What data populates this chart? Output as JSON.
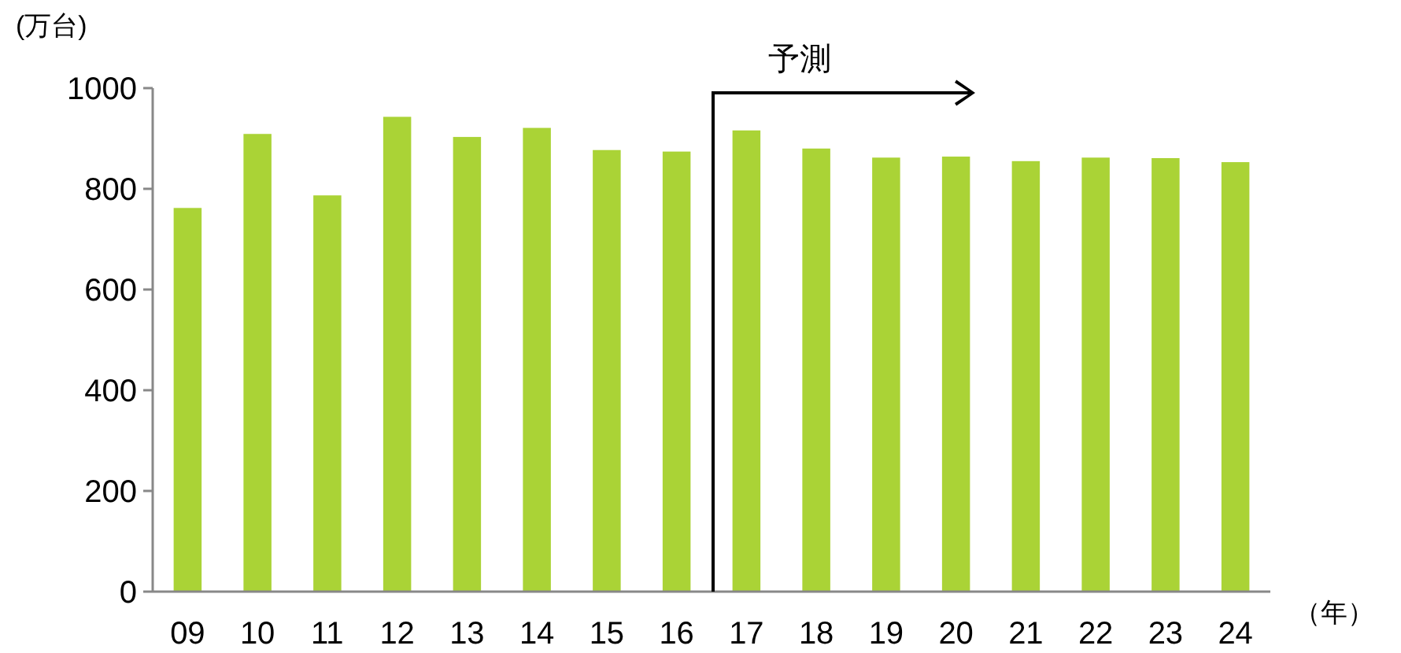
{
  "chart_data": {
    "type": "bar",
    "ylabel": "(万台)",
    "xlabel": "（年）",
    "categories": [
      "09",
      "10",
      "11",
      "12",
      "13",
      "14",
      "15",
      "16",
      "17",
      "18",
      "19",
      "20",
      "21",
      "22",
      "23",
      "24"
    ],
    "values": [
      762,
      909,
      787,
      943,
      903,
      921,
      877,
      874,
      916,
      880,
      862,
      864,
      855,
      862,
      861,
      853
    ],
    "color": "#aad336",
    "ylim": [
      0,
      1000
    ],
    "yticks": [
      0,
      200,
      400,
      600,
      800,
      1000
    ],
    "annotations": [
      "予測"
    ]
  }
}
